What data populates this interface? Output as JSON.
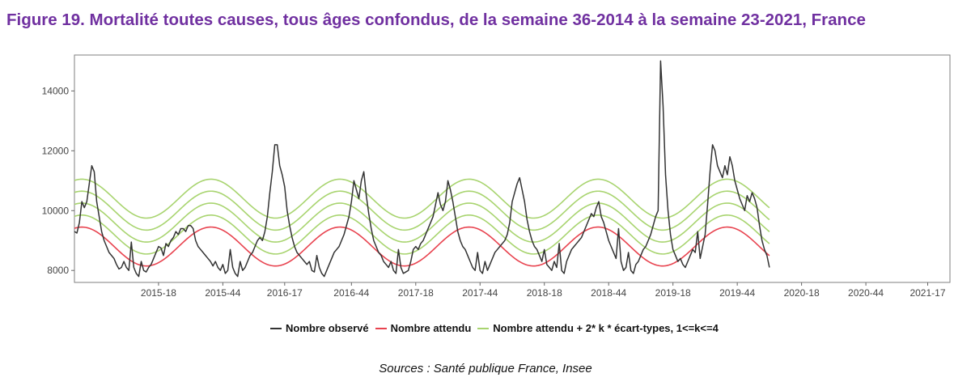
{
  "figure_title": "Figure 19. Mortalité toutes causes, tous âges confondus, de la semaine 36-2014 à la semaine 23-2021, France",
  "sources": "Sources : Santé publique France, Insee",
  "colors": {
    "title": "#7030a0",
    "observed": "#333333",
    "expected": "#e8434f",
    "thresholds": "#a8d46f"
  },
  "chart_data": {
    "type": "line",
    "x_unit": "week index from semaine 36-2014",
    "xlim": [
      0,
      354
    ],
    "ylim": [
      7600,
      15200
    ],
    "y_ticks": [
      8000,
      10000,
      12000,
      14000
    ],
    "x_ticks": [
      {
        "label": "2015-18",
        "x": 34
      },
      {
        "label": "2015-44",
        "x": 60
      },
      {
        "label": "2016-17",
        "x": 85
      },
      {
        "label": "2016-44",
        "x": 112
      },
      {
        "label": "2017-18",
        "x": 138
      },
      {
        "label": "2017-44",
        "x": 164
      },
      {
        "label": "2018-18",
        "x": 190
      },
      {
        "label": "2018-44",
        "x": 216
      },
      {
        "label": "2019-18",
        "x": 242
      },
      {
        "label": "2019-44",
        "x": 268
      },
      {
        "label": "2020-18",
        "x": 294
      },
      {
        "label": "2020-44",
        "x": 320
      },
      {
        "label": "2021-17",
        "x": 345
      }
    ],
    "grid": false,
    "legend_position": "bottom",
    "legend": [
      {
        "label": "Nombre observé",
        "color": "#333333"
      },
      {
        "label": "Nombre attendu",
        "color": "#e8434f"
      },
      {
        "label": "Nombre attendu + 2* k * écart-types, 1<=k<=4",
        "color": "#a8d46f"
      }
    ],
    "series": [
      {
        "name": "Nombre observé",
        "color": "#333333",
        "points": [
          [
            0,
            9300
          ],
          [
            1,
            9250
          ],
          [
            2,
            9600
          ],
          [
            3,
            10300
          ],
          [
            4,
            10100
          ],
          [
            5,
            10300
          ],
          [
            6,
            10900
          ],
          [
            7,
            11500
          ],
          [
            8,
            11300
          ],
          [
            9,
            10300
          ],
          [
            10,
            9800
          ],
          [
            11,
            9300
          ],
          [
            12,
            9000
          ],
          [
            13,
            8800
          ],
          [
            14,
            8600
          ],
          [
            15,
            8500
          ],
          [
            16,
            8400
          ],
          [
            17,
            8200
          ],
          [
            18,
            8050
          ],
          [
            19,
            8100
          ],
          [
            20,
            8300
          ],
          [
            21,
            8100
          ],
          [
            22,
            8000
          ],
          [
            23,
            8950
          ],
          [
            24,
            8100
          ],
          [
            25,
            7900
          ],
          [
            26,
            7800
          ],
          [
            27,
            8300
          ],
          [
            28,
            8000
          ],
          [
            29,
            7950
          ],
          [
            30,
            8100
          ],
          [
            31,
            8200
          ],
          [
            32,
            8400
          ],
          [
            33,
            8600
          ],
          [
            34,
            8800
          ],
          [
            35,
            8750
          ],
          [
            36,
            8500
          ],
          [
            37,
            8900
          ],
          [
            38,
            8800
          ],
          [
            39,
            9000
          ],
          [
            40,
            9100
          ],
          [
            41,
            9300
          ],
          [
            42,
            9200
          ],
          [
            43,
            9400
          ],
          [
            44,
            9400
          ],
          [
            45,
            9300
          ],
          [
            46,
            9500
          ],
          [
            47,
            9500
          ],
          [
            48,
            9400
          ],
          [
            49,
            9000
          ],
          [
            50,
            8800
          ],
          [
            51,
            8700
          ],
          [
            52,
            8600
          ],
          [
            53,
            8500
          ],
          [
            54,
            8400
          ],
          [
            55,
            8300
          ],
          [
            56,
            8150
          ],
          [
            57,
            8300
          ],
          [
            58,
            8100
          ],
          [
            59,
            8000
          ],
          [
            60,
            8200
          ],
          [
            61,
            7900
          ],
          [
            62,
            8000
          ],
          [
            63,
            8700
          ],
          [
            64,
            8100
          ],
          [
            65,
            7900
          ],
          [
            66,
            7800
          ],
          [
            67,
            8300
          ],
          [
            68,
            8000
          ],
          [
            69,
            8100
          ],
          [
            70,
            8300
          ],
          [
            71,
            8500
          ],
          [
            72,
            8600
          ],
          [
            73,
            8800
          ],
          [
            74,
            9000
          ],
          [
            75,
            9100
          ],
          [
            76,
            9000
          ],
          [
            77,
            9300
          ],
          [
            78,
            9800
          ],
          [
            79,
            10600
          ],
          [
            80,
            11300
          ],
          [
            81,
            12200
          ],
          [
            82,
            12200
          ],
          [
            83,
            11500
          ],
          [
            84,
            11200
          ],
          [
            85,
            10800
          ],
          [
            86,
            10000
          ],
          [
            87,
            9500
          ],
          [
            88,
            9100
          ],
          [
            89,
            8800
          ],
          [
            90,
            8600
          ],
          [
            91,
            8500
          ],
          [
            92,
            8400
          ],
          [
            93,
            8300
          ],
          [
            94,
            8200
          ],
          [
            95,
            8300
          ],
          [
            96,
            8000
          ],
          [
            97,
            7950
          ],
          [
            98,
            8500
          ],
          [
            99,
            8100
          ],
          [
            100,
            7900
          ],
          [
            101,
            7800
          ],
          [
            102,
            8000
          ],
          [
            103,
            8200
          ],
          [
            104,
            8400
          ],
          [
            105,
            8600
          ],
          [
            106,
            8700
          ],
          [
            107,
            8800
          ],
          [
            108,
            9000
          ],
          [
            109,
            9200
          ],
          [
            110,
            9500
          ],
          [
            111,
            9800
          ],
          [
            112,
            10300
          ],
          [
            113,
            11000
          ],
          [
            114,
            10700
          ],
          [
            115,
            10400
          ],
          [
            116,
            11000
          ],
          [
            117,
            11300
          ],
          [
            118,
            10500
          ],
          [
            119,
            9900
          ],
          [
            120,
            9400
          ],
          [
            121,
            9000
          ],
          [
            122,
            8800
          ],
          [
            123,
            8600
          ],
          [
            124,
            8500
          ],
          [
            125,
            8300
          ],
          [
            126,
            8200
          ],
          [
            127,
            8100
          ],
          [
            128,
            8300
          ],
          [
            129,
            8000
          ],
          [
            130,
            7900
          ],
          [
            131,
            8700
          ],
          [
            132,
            8100
          ],
          [
            133,
            7900
          ],
          [
            134,
            7950
          ],
          [
            135,
            8000
          ],
          [
            136,
            8300
          ],
          [
            137,
            8700
          ],
          [
            138,
            8800
          ],
          [
            139,
            8700
          ],
          [
            140,
            8900
          ],
          [
            141,
            9000
          ],
          [
            142,
            9200
          ],
          [
            143,
            9400
          ],
          [
            144,
            9600
          ],
          [
            145,
            9800
          ],
          [
            146,
            10200
          ],
          [
            147,
            10600
          ],
          [
            148,
            10200
          ],
          [
            149,
            10000
          ],
          [
            150,
            10300
          ],
          [
            151,
            11000
          ],
          [
            152,
            10700
          ],
          [
            153,
            10300
          ],
          [
            154,
            9800
          ],
          [
            155,
            9300
          ],
          [
            156,
            9000
          ],
          [
            157,
            8800
          ],
          [
            158,
            8700
          ],
          [
            159,
            8500
          ],
          [
            160,
            8300
          ],
          [
            161,
            8100
          ],
          [
            162,
            8000
          ],
          [
            163,
            8600
          ],
          [
            164,
            8000
          ],
          [
            165,
            7900
          ],
          [
            166,
            8300
          ],
          [
            167,
            8000
          ],
          [
            168,
            8200
          ],
          [
            169,
            8400
          ],
          [
            170,
            8600
          ],
          [
            171,
            8700
          ],
          [
            172,
            8800
          ],
          [
            173,
            8900
          ],
          [
            174,
            9000
          ],
          [
            175,
            9200
          ],
          [
            176,
            9600
          ],
          [
            177,
            10300
          ],
          [
            178,
            10600
          ],
          [
            179,
            10900
          ],
          [
            180,
            11100
          ],
          [
            181,
            10700
          ],
          [
            182,
            10300
          ],
          [
            183,
            9700
          ],
          [
            184,
            9300
          ],
          [
            185,
            9000
          ],
          [
            186,
            8800
          ],
          [
            187,
            8700
          ],
          [
            188,
            8500
          ],
          [
            189,
            8300
          ],
          [
            190,
            8700
          ],
          [
            191,
            8200
          ],
          [
            192,
            8100
          ],
          [
            193,
            8000
          ],
          [
            194,
            8300
          ],
          [
            195,
            8100
          ],
          [
            196,
            8900
          ],
          [
            197,
            8000
          ],
          [
            198,
            7900
          ],
          [
            199,
            8300
          ],
          [
            200,
            8500
          ],
          [
            201,
            8700
          ],
          [
            202,
            8800
          ],
          [
            203,
            8900
          ],
          [
            204,
            9000
          ],
          [
            205,
            9100
          ],
          [
            206,
            9300
          ],
          [
            207,
            9500
          ],
          [
            208,
            9700
          ],
          [
            209,
            9900
          ],
          [
            210,
            9800
          ],
          [
            211,
            10100
          ],
          [
            212,
            10300
          ],
          [
            213,
            9800
          ],
          [
            214,
            9600
          ],
          [
            215,
            9300
          ],
          [
            216,
            9000
          ],
          [
            217,
            8800
          ],
          [
            218,
            8600
          ],
          [
            219,
            8400
          ],
          [
            220,
            9400
          ],
          [
            221,
            8300
          ],
          [
            222,
            8000
          ],
          [
            223,
            8100
          ],
          [
            224,
            8600
          ],
          [
            225,
            8000
          ],
          [
            226,
            7900
          ],
          [
            227,
            8200
          ],
          [
            228,
            8300
          ],
          [
            229,
            8500
          ],
          [
            230,
            8700
          ],
          [
            231,
            8800
          ],
          [
            232,
            9000
          ],
          [
            233,
            9200
          ],
          [
            234,
            9500
          ],
          [
            235,
            9800
          ],
          [
            236,
            10000
          ],
          [
            237,
            15000
          ],
          [
            238,
            13500
          ],
          [
            239,
            11200
          ],
          [
            240,
            10000
          ],
          [
            241,
            9200
          ],
          [
            242,
            8700
          ],
          [
            243,
            8500
          ],
          [
            244,
            8300
          ],
          [
            245,
            8400
          ],
          [
            246,
            8200
          ],
          [
            247,
            8100
          ],
          [
            248,
            8300
          ],
          [
            249,
            8500
          ],
          [
            250,
            8700
          ],
          [
            251,
            8600
          ],
          [
            252,
            9300
          ],
          [
            253,
            8400
          ],
          [
            254,
            8800
          ],
          [
            255,
            9200
          ],
          [
            256,
            10200
          ],
          [
            257,
            11300
          ],
          [
            258,
            12200
          ],
          [
            259,
            12000
          ],
          [
            260,
            11500
          ],
          [
            261,
            11300
          ],
          [
            262,
            11100
          ],
          [
            263,
            11500
          ],
          [
            264,
            11200
          ],
          [
            265,
            11800
          ],
          [
            266,
            11500
          ],
          [
            267,
            11000
          ],
          [
            268,
            10700
          ],
          [
            269,
            10400
          ],
          [
            270,
            10200
          ],
          [
            271,
            10000
          ],
          [
            272,
            10500
          ],
          [
            273,
            10300
          ],
          [
            274,
            10600
          ],
          [
            275,
            10400
          ],
          [
            276,
            10100
          ],
          [
            277,
            9500
          ],
          [
            278,
            9000
          ],
          [
            279,
            8700
          ],
          [
            280,
            8500
          ],
          [
            281,
            8100
          ]
        ]
      },
      {
        "name": "Nombre attendu",
        "color": "#e8434f",
        "sine": {
          "mean": 8800,
          "amplitude": 650,
          "period_weeks": 52.18,
          "peak_week": 3,
          "k": 0
        },
        "x_range": [
          0,
          281
        ]
      },
      {
        "name": "Nombre attendu + 2* k * écart-types, 1<=k<=4",
        "color": "#a8d46f",
        "threshold_k": [
          1,
          2,
          3,
          4
        ],
        "sd": 200,
        "x_range": [
          0,
          281
        ]
      }
    ]
  }
}
